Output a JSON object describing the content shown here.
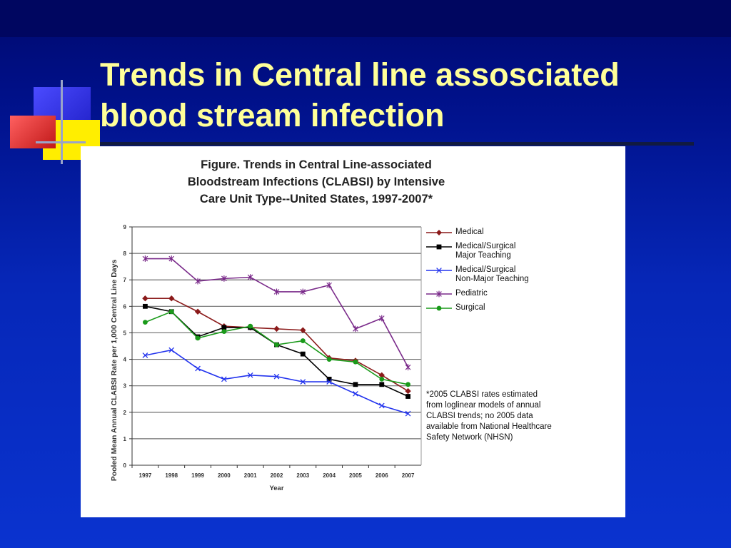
{
  "slide": {
    "title_lines": [
      "Trends in Central line assosciated",
      "blood stream infection"
    ]
  },
  "colors": {
    "title": "#ffff99",
    "background": "#0a2ec8"
  },
  "chart_data": {
    "type": "line",
    "title_lines": [
      "Figure. Trends in Central Line-associated",
      "Bloodstream Infections (CLABSI) by Intensive",
      "Care Unit Type--United States, 1997-2007*"
    ],
    "xlabel": "Year",
    "ylabel": "Pooled Mean Annual CLABSI Rate per 1,000 Central Line Days",
    "x": [
      "1997",
      "1998",
      "1999",
      "2000",
      "2001",
      "2002",
      "2003",
      "2004",
      "2005",
      "2006",
      "2007"
    ],
    "ylim": [
      0,
      9
    ],
    "yticks": [
      "0",
      "1",
      "2",
      "3",
      "4",
      "5",
      "6",
      "7",
      "8",
      "9"
    ],
    "grid": true,
    "legend_position": "right",
    "series": [
      {
        "name": "Medical",
        "color": "#8b1a1a",
        "marker": "diamond",
        "values": [
          6.3,
          6.3,
          5.8,
          5.25,
          5.2,
          5.15,
          5.1,
          4.05,
          3.95,
          3.4,
          2.8
        ]
      },
      {
        "name": "Medical/Surgical Major Teaching",
        "label_lines": [
          "Medical/Surgical",
          "Major Teaching"
        ],
        "color": "#000000",
        "marker": "square",
        "values": [
          6.0,
          5.8,
          4.85,
          5.2,
          5.2,
          4.55,
          4.2,
          3.25,
          3.05,
          3.05,
          2.6
        ]
      },
      {
        "name": "Medical/Surgical Non-Major Teaching",
        "label_lines": [
          "Medical/Surgical",
          "Non-Major Teaching"
        ],
        "color": "#2233ee",
        "marker": "x",
        "values": [
          4.15,
          4.35,
          3.65,
          3.25,
          3.4,
          3.35,
          3.15,
          3.15,
          2.7,
          2.25,
          1.95
        ]
      },
      {
        "name": "Pediatric",
        "color": "#7a2a8a",
        "marker": "star",
        "values": [
          7.8,
          7.8,
          6.95,
          7.05,
          7.1,
          6.55,
          6.55,
          6.8,
          5.15,
          5.55,
          3.7
        ]
      },
      {
        "name": "Surgical",
        "color": "#1a9a1a",
        "marker": "circle",
        "values": [
          5.4,
          5.8,
          4.8,
          5.05,
          5.25,
          4.55,
          4.7,
          4.0,
          3.9,
          3.25,
          3.05
        ]
      }
    ],
    "footnote": "*2005 CLABSI rates estimated from loglinear models of annual CLABSI trends; no 2005 data available from National Healthcare Safety Network (NHSN)"
  }
}
